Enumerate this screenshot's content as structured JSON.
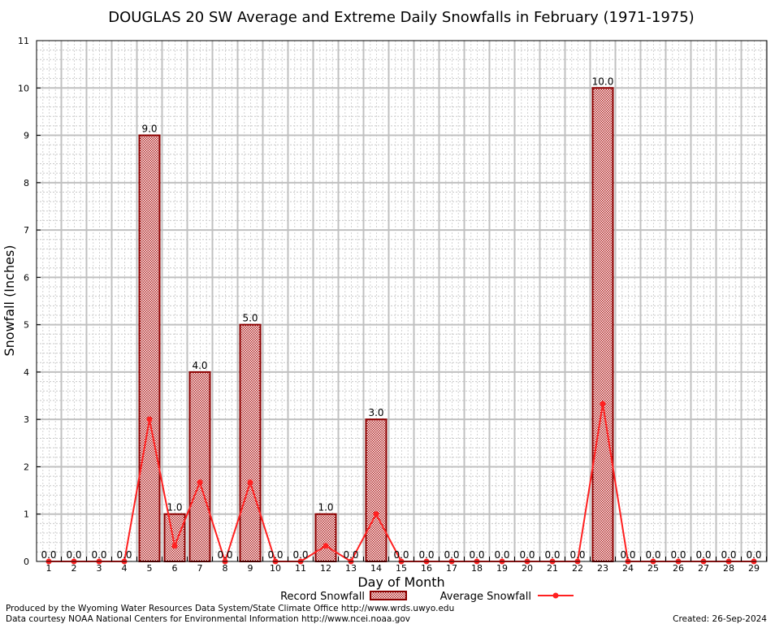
{
  "chart_data": {
    "type": "bar",
    "title": "DOUGLAS 20 SW Average and Extreme Daily Snowfalls in February (1971-1975)",
    "xlabel": "Day of Month",
    "ylabel": "Snowfall (Inches)",
    "ylim": [
      0,
      11
    ],
    "yticks": [
      "0",
      "1",
      "2",
      "3",
      "4",
      "5",
      "6",
      "7",
      "8",
      "9",
      "10",
      "11"
    ],
    "categories": [
      "1",
      "2",
      "3",
      "4",
      "5",
      "6",
      "7",
      "8",
      "9",
      "10",
      "11",
      "12",
      "13",
      "14",
      "15",
      "16",
      "17",
      "18",
      "19",
      "20",
      "21",
      "22",
      "23",
      "24",
      "25",
      "26",
      "27",
      "28",
      "29"
    ],
    "series": [
      {
        "name": "Record Snowfall",
        "type": "bar",
        "values": [
          0,
          0,
          0,
          0,
          9,
          1,
          4,
          0,
          5,
          0,
          0,
          1,
          0,
          3,
          0,
          0,
          0,
          0,
          0,
          0,
          0,
          0,
          10,
          0,
          0,
          0,
          0,
          0,
          0
        ],
        "labels": [
          "0.0",
          "0.0",
          "0.0",
          "0.0",
          "9.0",
          "1.0",
          "4.0",
          "0.0",
          "5.0",
          "0.0",
          "0.0",
          "1.0",
          "0.0",
          "3.0",
          "0.0",
          "0.0",
          "0.0",
          "0.0",
          "0.0",
          "0.0",
          "0.0",
          "0.0",
          "10.0",
          "0.0",
          "0.0",
          "0.0",
          "0.0",
          "0.0",
          "0.0"
        ]
      },
      {
        "name": "Average Snowfall",
        "type": "line",
        "values": [
          0,
          0,
          0,
          0,
          3.0,
          0.33,
          1.67,
          0,
          1.67,
          0,
          0,
          0.33,
          0,
          1.0,
          0,
          0,
          0,
          0,
          0,
          0,
          0,
          0,
          3.33,
          0,
          0,
          0,
          0,
          0,
          0
        ]
      }
    ],
    "legend": "bottom-center",
    "grid": true
  },
  "footer": {
    "produced_by": "Produced by the Wyoming Water Resources Data System/State Climate Office http://www.wrds.uwyo.edu",
    "courtesy": "Data courtesy NOAA National Centers for Environmental Information http://www.ncei.noaa.gov",
    "created": "Created: 26-Sep-2024"
  },
  "colors": {
    "bar_fill": "#c04040",
    "bar_edge": "#8b0000",
    "line": "#ff2020",
    "grid": "#c0c0c0"
  }
}
